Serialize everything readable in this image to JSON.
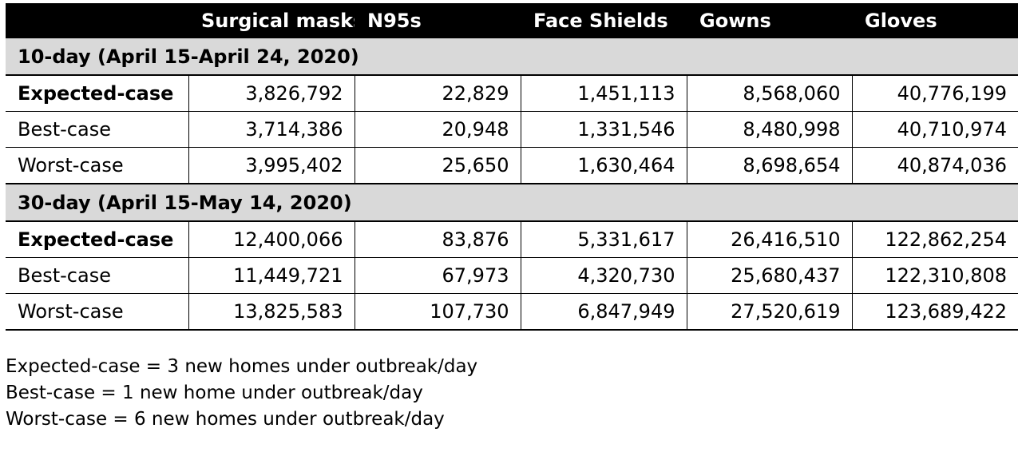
{
  "table": {
    "columns": [
      "",
      "Surgical masks",
      "N95s",
      "Face Shields",
      "Gowns",
      "Gloves"
    ],
    "sections": [
      {
        "title": "10-day (April 15-April 24, 2020)",
        "rows": [
          {
            "label": "Expected-case",
            "values": [
              "3,826,792",
              "22,829",
              "1,451,113",
              "8,568,060",
              "40,776,199"
            ]
          },
          {
            "label": "Best-case",
            "values": [
              "3,714,386",
              "20,948",
              "1,331,546",
              "8,480,998",
              "40,710,974"
            ]
          },
          {
            "label": "Worst-case",
            "values": [
              "3,995,402",
              "25,650",
              "1,630,464",
              "8,698,654",
              "40,874,036"
            ]
          }
        ]
      },
      {
        "title": "30-day (April 15-May 14, 2020)",
        "rows": [
          {
            "label": "Expected-case",
            "values": [
              "12,400,066",
              "83,876",
              "5,331,617",
              "26,416,510",
              "122,862,254"
            ]
          },
          {
            "label": "Best-case",
            "values": [
              "11,449,721",
              "67,973",
              "4,320,730",
              "25,680,437",
              "122,310,808"
            ]
          },
          {
            "label": "Worst-case",
            "values": [
              "13,825,583",
              "107,730",
              "6,847,949",
              "27,520,619",
              "123,689,422"
            ]
          }
        ]
      }
    ]
  },
  "notes": [
    "Expected-case = 3 new homes under outbreak/day",
    "Best-case = 1 new home under outbreak/day",
    "Worst-case = 6 new homes under outbreak/day"
  ],
  "colors": {
    "header_bg": "#000000",
    "header_text": "#ffffff",
    "section_bg": "#d9d9d9"
  }
}
